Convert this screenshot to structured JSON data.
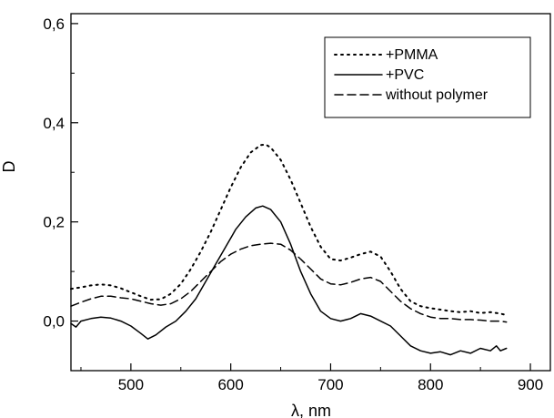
{
  "chart_data": {
    "type": "line",
    "title": "",
    "xlabel": "λ, nm",
    "ylabel": "D",
    "xlim": [
      440,
      920
    ],
    "ylim": [
      -0.1,
      0.62
    ],
    "x_ticks": [
      500,
      600,
      700,
      800,
      900
    ],
    "x_tick_labels": [
      "500",
      "600",
      "700",
      "800",
      "900"
    ],
    "y_ticks": [
      0.0,
      0.2,
      0.4,
      0.6
    ],
    "y_tick_labels": [
      "0,0",
      "0,2",
      "0,4",
      "0,6"
    ],
    "grid": false,
    "legend_position": "top-right",
    "series": [
      {
        "name": "+PMMA",
        "style": "dotted",
        "color": "#000000",
        "points": [
          [
            440,
            0.065
          ],
          [
            450,
            0.068
          ],
          [
            460,
            0.072
          ],
          [
            470,
            0.074
          ],
          [
            480,
            0.072
          ],
          [
            490,
            0.066
          ],
          [
            500,
            0.058
          ],
          [
            510,
            0.05
          ],
          [
            520,
            0.043
          ],
          [
            530,
            0.044
          ],
          [
            540,
            0.055
          ],
          [
            550,
            0.075
          ],
          [
            560,
            0.105
          ],
          [
            570,
            0.14
          ],
          [
            580,
            0.18
          ],
          [
            590,
            0.225
          ],
          [
            600,
            0.27
          ],
          [
            610,
            0.31
          ],
          [
            620,
            0.34
          ],
          [
            630,
            0.355
          ],
          [
            635,
            0.356
          ],
          [
            640,
            0.35
          ],
          [
            650,
            0.325
          ],
          [
            660,
            0.285
          ],
          [
            670,
            0.238
          ],
          [
            680,
            0.19
          ],
          [
            690,
            0.15
          ],
          [
            700,
            0.125
          ],
          [
            710,
            0.122
          ],
          [
            720,
            0.128
          ],
          [
            730,
            0.135
          ],
          [
            740,
            0.14
          ],
          [
            750,
            0.13
          ],
          [
            760,
            0.1
          ],
          [
            770,
            0.065
          ],
          [
            780,
            0.04
          ],
          [
            790,
            0.03
          ],
          [
            800,
            0.026
          ],
          [
            810,
            0.023
          ],
          [
            820,
            0.02
          ],
          [
            830,
            0.018
          ],
          [
            840,
            0.02
          ],
          [
            850,
            0.016
          ],
          [
            860,
            0.018
          ],
          [
            870,
            0.015
          ],
          [
            876,
            0.012
          ]
        ]
      },
      {
        "name": "+PVC",
        "style": "solid",
        "color": "#000000",
        "points": [
          [
            440,
            -0.005
          ],
          [
            445,
            -0.012
          ],
          [
            450,
            0.0
          ],
          [
            460,
            0.005
          ],
          [
            470,
            0.008
          ],
          [
            480,
            0.006
          ],
          [
            490,
            0.0
          ],
          [
            500,
            -0.01
          ],
          [
            510,
            -0.025
          ],
          [
            517,
            -0.036
          ],
          [
            525,
            -0.028
          ],
          [
            535,
            -0.012
          ],
          [
            545,
            0.0
          ],
          [
            555,
            0.02
          ],
          [
            565,
            0.045
          ],
          [
            575,
            0.08
          ],
          [
            585,
            0.115
          ],
          [
            595,
            0.15
          ],
          [
            605,
            0.185
          ],
          [
            615,
            0.21
          ],
          [
            625,
            0.228
          ],
          [
            632,
            0.232
          ],
          [
            640,
            0.225
          ],
          [
            650,
            0.2
          ],
          [
            660,
            0.155
          ],
          [
            670,
            0.1
          ],
          [
            680,
            0.055
          ],
          [
            690,
            0.02
          ],
          [
            700,
            0.005
          ],
          [
            710,
            0.0
          ],
          [
            720,
            0.005
          ],
          [
            730,
            0.015
          ],
          [
            740,
            0.01
          ],
          [
            750,
            0.0
          ],
          [
            760,
            -0.01
          ],
          [
            770,
            -0.03
          ],
          [
            780,
            -0.05
          ],
          [
            790,
            -0.06
          ],
          [
            800,
            -0.065
          ],
          [
            810,
            -0.062
          ],
          [
            820,
            -0.068
          ],
          [
            830,
            -0.06
          ],
          [
            840,
            -0.065
          ],
          [
            850,
            -0.055
          ],
          [
            860,
            -0.06
          ],
          [
            866,
            -0.05
          ],
          [
            870,
            -0.06
          ],
          [
            876,
            -0.055
          ]
        ]
      },
      {
        "name": "without polymer",
        "style": "dashed",
        "color": "#000000",
        "points": [
          [
            440,
            0.03
          ],
          [
            450,
            0.038
          ],
          [
            460,
            0.045
          ],
          [
            470,
            0.05
          ],
          [
            480,
            0.05
          ],
          [
            490,
            0.047
          ],
          [
            500,
            0.045
          ],
          [
            510,
            0.04
          ],
          [
            520,
            0.035
          ],
          [
            530,
            0.032
          ],
          [
            540,
            0.035
          ],
          [
            550,
            0.045
          ],
          [
            560,
            0.06
          ],
          [
            570,
            0.08
          ],
          [
            580,
            0.1
          ],
          [
            590,
            0.12
          ],
          [
            600,
            0.135
          ],
          [
            610,
            0.145
          ],
          [
            620,
            0.152
          ],
          [
            630,
            0.155
          ],
          [
            640,
            0.157
          ],
          [
            650,
            0.155
          ],
          [
            660,
            0.143
          ],
          [
            670,
            0.125
          ],
          [
            680,
            0.105
          ],
          [
            690,
            0.085
          ],
          [
            700,
            0.075
          ],
          [
            710,
            0.073
          ],
          [
            720,
            0.078
          ],
          [
            730,
            0.085
          ],
          [
            740,
            0.088
          ],
          [
            750,
            0.08
          ],
          [
            760,
            0.06
          ],
          [
            770,
            0.04
          ],
          [
            780,
            0.025
          ],
          [
            790,
            0.015
          ],
          [
            800,
            0.008
          ],
          [
            810,
            0.005
          ],
          [
            820,
            0.005
          ],
          [
            830,
            0.003
          ],
          [
            840,
            0.003
          ],
          [
            850,
            0.002
          ],
          [
            860,
            0.0
          ],
          [
            870,
            0.0
          ],
          [
            876,
            -0.002
          ]
        ]
      }
    ]
  }
}
